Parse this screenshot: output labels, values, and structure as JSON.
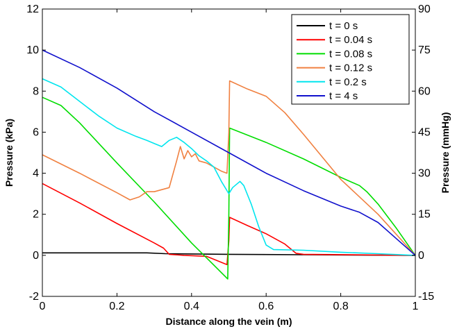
{
  "chart_data": {
    "type": "line",
    "title": "",
    "xlabel": "Distance along the vein (m)",
    "ylabel": "Pressure (kPa)",
    "ylabel_right": "Pressure (mmHg)",
    "xlim": [
      0,
      1
    ],
    "ylim": [
      -2,
      12
    ],
    "ylim_right": [
      -15,
      90
    ],
    "x_ticks": [
      "0",
      "0.2",
      "0.4",
      "0.6",
      "0.8",
      "1"
    ],
    "y_ticks": [
      "-2",
      "0",
      "2",
      "4",
      "6",
      "8",
      "10",
      "12"
    ],
    "y_ticks_right": [
      "-15",
      "0",
      "15",
      "30",
      "45",
      "60",
      "75",
      "90"
    ],
    "grid": false,
    "legend_position": "top-right",
    "series": [
      {
        "name": "t = 0 s",
        "color": "#000000",
        "points": [
          [
            0,
            0.12
          ],
          [
            0.28,
            0.12
          ],
          [
            0.33,
            0.08
          ],
          [
            0.5,
            0.05
          ],
          [
            0.7,
            0.03
          ],
          [
            1.0,
            0.0
          ]
        ]
      },
      {
        "name": "t = 0.04 s",
        "color": "#ff0000",
        "points": [
          [
            0,
            3.5
          ],
          [
            0.1,
            2.55
          ],
          [
            0.2,
            1.55
          ],
          [
            0.3,
            0.6
          ],
          [
            0.325,
            0.35
          ],
          [
            0.34,
            0.05
          ],
          [
            0.38,
            0.0
          ],
          [
            0.44,
            -0.05
          ],
          [
            0.495,
            -0.45
          ],
          [
            0.5,
            0.7
          ],
          [
            0.502,
            1.85
          ],
          [
            0.55,
            1.45
          ],
          [
            0.6,
            1.05
          ],
          [
            0.65,
            0.55
          ],
          [
            0.68,
            0.1
          ],
          [
            0.7,
            0.05
          ],
          [
            1.0,
            0.0
          ]
        ]
      },
      {
        "name": "t = 0.08 s",
        "color": "#00dd00",
        "points": [
          [
            0,
            7.7
          ],
          [
            0.05,
            7.3
          ],
          [
            0.1,
            6.45
          ],
          [
            0.2,
            4.5
          ],
          [
            0.3,
            2.6
          ],
          [
            0.4,
            0.6
          ],
          [
            0.45,
            -0.3
          ],
          [
            0.497,
            -1.15
          ],
          [
            0.5,
            2.0
          ],
          [
            0.502,
            6.2
          ],
          [
            0.6,
            5.5
          ],
          [
            0.7,
            4.7
          ],
          [
            0.8,
            3.8
          ],
          [
            0.85,
            3.4
          ],
          [
            0.87,
            3.1
          ],
          [
            0.9,
            2.5
          ],
          [
            0.95,
            1.3
          ],
          [
            1.0,
            0.0
          ]
        ]
      },
      {
        "name": "t = 0.12 s",
        "color": "#f08040",
        "points": [
          [
            0,
            4.9
          ],
          [
            0.1,
            4.0
          ],
          [
            0.2,
            3.05
          ],
          [
            0.235,
            2.7
          ],
          [
            0.26,
            2.85
          ],
          [
            0.28,
            3.1
          ],
          [
            0.3,
            3.1
          ],
          [
            0.34,
            3.3
          ],
          [
            0.36,
            4.6
          ],
          [
            0.37,
            5.3
          ],
          [
            0.38,
            4.7
          ],
          [
            0.39,
            5.1
          ],
          [
            0.4,
            4.8
          ],
          [
            0.41,
            4.95
          ],
          [
            0.42,
            4.6
          ],
          [
            0.44,
            4.5
          ],
          [
            0.46,
            4.3
          ],
          [
            0.48,
            4.1
          ],
          [
            0.495,
            4.0
          ],
          [
            0.5,
            6.0
          ],
          [
            0.502,
            8.5
          ],
          [
            0.55,
            8.1
          ],
          [
            0.6,
            7.75
          ],
          [
            0.65,
            6.95
          ],
          [
            0.7,
            5.9
          ],
          [
            0.8,
            3.7
          ],
          [
            0.9,
            2.0
          ],
          [
            1.0,
            0.0
          ]
        ]
      },
      {
        "name": "t = 0.2 s",
        "color": "#00e5ee",
        "points": [
          [
            0,
            8.6
          ],
          [
            0.05,
            8.2
          ],
          [
            0.1,
            7.5
          ],
          [
            0.15,
            6.8
          ],
          [
            0.2,
            6.2
          ],
          [
            0.25,
            5.8
          ],
          [
            0.28,
            5.6
          ],
          [
            0.3,
            5.45
          ],
          [
            0.32,
            5.3
          ],
          [
            0.34,
            5.6
          ],
          [
            0.36,
            5.75
          ],
          [
            0.38,
            5.5
          ],
          [
            0.4,
            5.2
          ],
          [
            0.42,
            4.85
          ],
          [
            0.44,
            4.6
          ],
          [
            0.46,
            4.3
          ],
          [
            0.48,
            3.6
          ],
          [
            0.5,
            3.0
          ],
          [
            0.51,
            3.3
          ],
          [
            0.52,
            3.45
          ],
          [
            0.53,
            3.6
          ],
          [
            0.54,
            3.4
          ],
          [
            0.56,
            2.5
          ],
          [
            0.58,
            1.4
          ],
          [
            0.6,
            0.5
          ],
          [
            0.62,
            0.28
          ],
          [
            0.7,
            0.25
          ],
          [
            0.8,
            0.15
          ],
          [
            0.9,
            0.08
          ],
          [
            1.0,
            0.0
          ]
        ]
      },
      {
        "name": "t = 4 s",
        "color": "#1010cc",
        "points": [
          [
            0,
            10.0
          ],
          [
            0.1,
            9.15
          ],
          [
            0.2,
            8.15
          ],
          [
            0.3,
            7.0
          ],
          [
            0.4,
            6.0
          ],
          [
            0.5,
            5.0
          ],
          [
            0.6,
            4.0
          ],
          [
            0.7,
            3.15
          ],
          [
            0.8,
            2.4
          ],
          [
            0.85,
            2.1
          ],
          [
            0.9,
            1.6
          ],
          [
            0.95,
            0.8
          ],
          [
            1.0,
            0.0
          ]
        ]
      }
    ]
  }
}
